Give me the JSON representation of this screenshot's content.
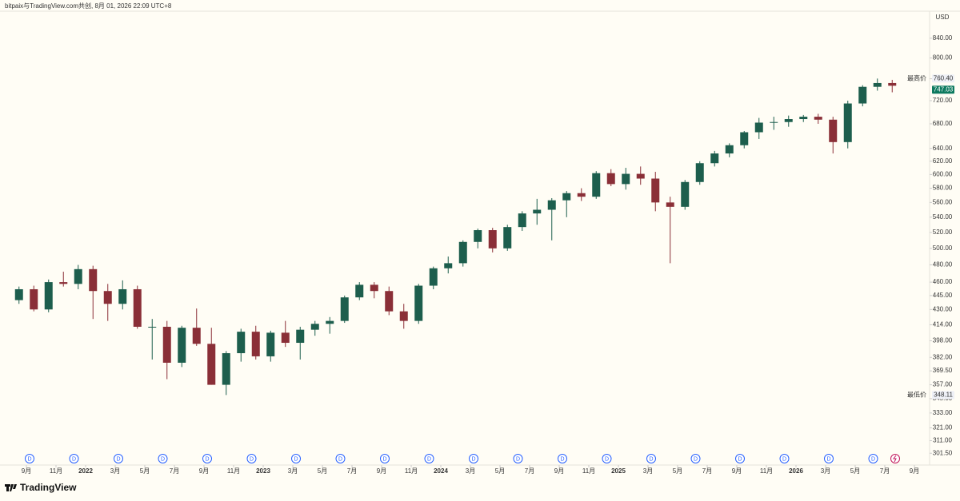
{
  "header": {
    "title": "bitpaix与TradingView.com共创, 8月 01, 2026 22:09 UTC+8",
    "logo": "TradingView"
  },
  "chart_data": {
    "type": "candlestick",
    "currency": "USD",
    "log_scale": true,
    "up_color": "#1d5e4d",
    "down_color": "#8a2f37",
    "x": [
      "2021-08",
      "2021-09",
      "2021-10",
      "2021-11",
      "2021-12",
      "2022-01",
      "2022-02",
      "2022-03",
      "2022-04",
      "2022-05",
      "2022-06",
      "2022-07",
      "2022-08",
      "2022-09",
      "2022-10",
      "2022-11",
      "2022-12",
      "2023-01",
      "2023-02",
      "2023-03",
      "2023-04",
      "2023-05",
      "2023-06",
      "2023-07",
      "2023-08",
      "2023-09",
      "2023-10",
      "2023-11",
      "2023-12",
      "2024-01",
      "2024-02",
      "2024-03",
      "2024-04",
      "2024-05",
      "2024-06",
      "2024-07",
      "2024-08",
      "2024-09",
      "2024-10",
      "2024-11",
      "2024-12",
      "2025-01",
      "2025-02",
      "2025-03",
      "2025-04",
      "2025-05",
      "2025-06",
      "2025-07",
      "2025-08",
      "2025-09",
      "2025-10",
      "2025-11",
      "2025-12",
      "2026-01",
      "2026-02",
      "2026-03",
      "2026-04",
      "2026-05",
      "2026-06",
      "2026-07"
    ],
    "open": [
      440,
      452,
      430,
      460,
      458,
      475,
      450,
      436,
      452,
      412,
      412,
      377,
      411,
      395,
      357,
      386,
      407,
      383,
      406,
      396,
      409,
      415,
      418,
      443,
      457,
      450,
      428,
      418,
      456,
      476,
      482,
      508,
      523,
      500,
      527,
      545,
      550,
      563,
      573,
      568,
      602,
      586,
      601,
      594,
      560,
      554,
      589,
      617,
      632,
      645,
      666,
      682,
      683,
      688,
      692,
      687,
      650,
      715,
      745,
      752
    ],
    "high": [
      455,
      456,
      463,
      472,
      480,
      479,
      458,
      462,
      456,
      420,
      418,
      413,
      431,
      411,
      388,
      410,
      413,
      408,
      418,
      412,
      418,
      422,
      445,
      460,
      460,
      455,
      436,
      458,
      478,
      490,
      510,
      525,
      526,
      530,
      548,
      565,
      566,
      576,
      580,
      605,
      608,
      610,
      612,
      604,
      568,
      592,
      620,
      636,
      648,
      668,
      690,
      692,
      694,
      695,
      697,
      692,
      720,
      748,
      760.4,
      758
    ],
    "low": [
      436,
      428,
      427,
      455,
      452,
      420,
      418,
      430,
      410,
      380,
      362,
      373,
      393,
      357,
      348.11,
      378,
      380,
      378,
      392,
      380,
      403,
      405,
      416,
      440,
      442,
      424,
      410,
      415,
      452,
      470,
      478,
      500,
      495,
      497,
      522,
      530,
      510,
      540,
      562,
      565,
      583,
      578,
      585,
      548,
      482,
      550,
      585,
      612,
      626,
      640,
      655,
      670,
      675,
      683,
      680,
      632,
      640,
      710,
      738,
      735
    ],
    "close": [
      452,
      430,
      460,
      458,
      475,
      450,
      436,
      452,
      412,
      412,
      377,
      411,
      395,
      357,
      386,
      407,
      383,
      406,
      396,
      409,
      415,
      418,
      443,
      457,
      450,
      428,
      418,
      456,
      476,
      482,
      508,
      523,
      500,
      527,
      545,
      550,
      563,
      573,
      568,
      602,
      586,
      601,
      594,
      560,
      554,
      589,
      617,
      632,
      645,
      666,
      682,
      683,
      688,
      692,
      687,
      650,
      715,
      745,
      752,
      747.03
    ],
    "ylim": [
      294,
      898
    ],
    "yticks": [
      {
        "value": 301.5,
        "label": "301.50"
      },
      {
        "value": 311,
        "label": "311.00"
      },
      {
        "value": 321,
        "label": "321.00"
      },
      {
        "value": 333,
        "label": "333.00"
      },
      {
        "value": 345,
        "label": "345.00"
      },
      {
        "value": 357,
        "label": "357.00"
      },
      {
        "value": 369.5,
        "label": "369.50"
      },
      {
        "value": 382,
        "label": "382.00"
      },
      {
        "value": 398,
        "label": "398.00"
      },
      {
        "value": 414,
        "label": "414.00"
      },
      {
        "value": 430,
        "label": "430.00"
      },
      {
        "value": 445,
        "label": "445.00"
      },
      {
        "value": 460,
        "label": "460.00"
      },
      {
        "value": 480,
        "label": "480.00"
      },
      {
        "value": 500,
        "label": "500.00"
      },
      {
        "value": 520,
        "label": "520.00"
      },
      {
        "value": 540,
        "label": "540.00"
      },
      {
        "value": 560,
        "label": "560.00"
      },
      {
        "value": 580,
        "label": "580.00"
      },
      {
        "value": 600,
        "label": "600.00"
      },
      {
        "value": 620,
        "label": "620.00"
      },
      {
        "value": 640,
        "label": "640.00"
      },
      {
        "value": 680,
        "label": "680.00"
      },
      {
        "value": 720,
        "label": "720.00"
      },
      {
        "value": 760,
        "label": "760.00"
      },
      {
        "value": 800,
        "label": "800.00"
      },
      {
        "value": 840,
        "label": "840.00"
      }
    ],
    "xticks": [
      {
        "value": "2021-09",
        "label": "9月"
      },
      {
        "value": "2021-11",
        "label": "11月"
      },
      {
        "value": "2022-01",
        "label": "2022"
      },
      {
        "value": "2022-03",
        "label": "3月"
      },
      {
        "value": "2022-05",
        "label": "5月"
      },
      {
        "value": "2022-07",
        "label": "7月"
      },
      {
        "value": "2022-09",
        "label": "9月"
      },
      {
        "value": "2022-11",
        "label": "11月"
      },
      {
        "value": "2023-01",
        "label": "2023"
      },
      {
        "value": "2023-03",
        "label": "3月"
      },
      {
        "value": "2023-05",
        "label": "5月"
      },
      {
        "value": "2023-07",
        "label": "7月"
      },
      {
        "value": "2023-09",
        "label": "9月"
      },
      {
        "value": "2023-11",
        "label": "11月"
      },
      {
        "value": "2024-01",
        "label": "2024"
      },
      {
        "value": "2024-03",
        "label": "3月"
      },
      {
        "value": "2024-05",
        "label": "5月"
      },
      {
        "value": "2024-07",
        "label": "7月"
      },
      {
        "value": "2024-09",
        "label": "9月"
      },
      {
        "value": "2024-11",
        "label": "11月"
      },
      {
        "value": "2025-01",
        "label": "2025"
      },
      {
        "value": "2025-03",
        "label": "3月"
      },
      {
        "value": "2025-05",
        "label": "5月"
      },
      {
        "value": "2025-07",
        "label": "7月"
      },
      {
        "value": "2025-09",
        "label": "9月"
      },
      {
        "value": "2025-11",
        "label": "11月"
      },
      {
        "value": "2026-01",
        "label": "2026"
      },
      {
        "value": "2026-03",
        "label": "3月"
      },
      {
        "value": "2026-05",
        "label": "5月"
      },
      {
        "value": "2026-07",
        "label": "7月"
      },
      {
        "value": "2026-09",
        "label": "9月"
      }
    ],
    "events": [
      {
        "x": "2021-09",
        "label": "D"
      },
      {
        "x": "2021-12",
        "label": "D"
      },
      {
        "x": "2022-03",
        "label": "D"
      },
      {
        "x": "2022-06",
        "label": "D"
      },
      {
        "x": "2022-09",
        "label": "D"
      },
      {
        "x": "2022-12",
        "label": "D"
      },
      {
        "x": "2023-03",
        "label": "D"
      },
      {
        "x": "2023-06",
        "label": "D"
      },
      {
        "x": "2023-09",
        "label": "D"
      },
      {
        "x": "2023-12",
        "label": "D"
      },
      {
        "x": "2024-03",
        "label": "D"
      },
      {
        "x": "2024-06",
        "label": "D"
      },
      {
        "x": "2024-09",
        "label": "D"
      },
      {
        "x": "2024-12",
        "label": "D"
      },
      {
        "x": "2025-03",
        "label": "D"
      },
      {
        "x": "2025-06",
        "label": "D"
      },
      {
        "x": "2025-09",
        "label": "D"
      },
      {
        "x": "2025-12",
        "label": "D"
      },
      {
        "x": "2026-03",
        "label": "D"
      },
      {
        "x": "2026-06",
        "label": "D"
      }
    ],
    "high_marker": {
      "label": "最高价",
      "value": 760.4,
      "value_label": "760.40"
    },
    "low_marker": {
      "label": "最低价",
      "value": 348.11
    },
    "last_price": 747.03
  }
}
